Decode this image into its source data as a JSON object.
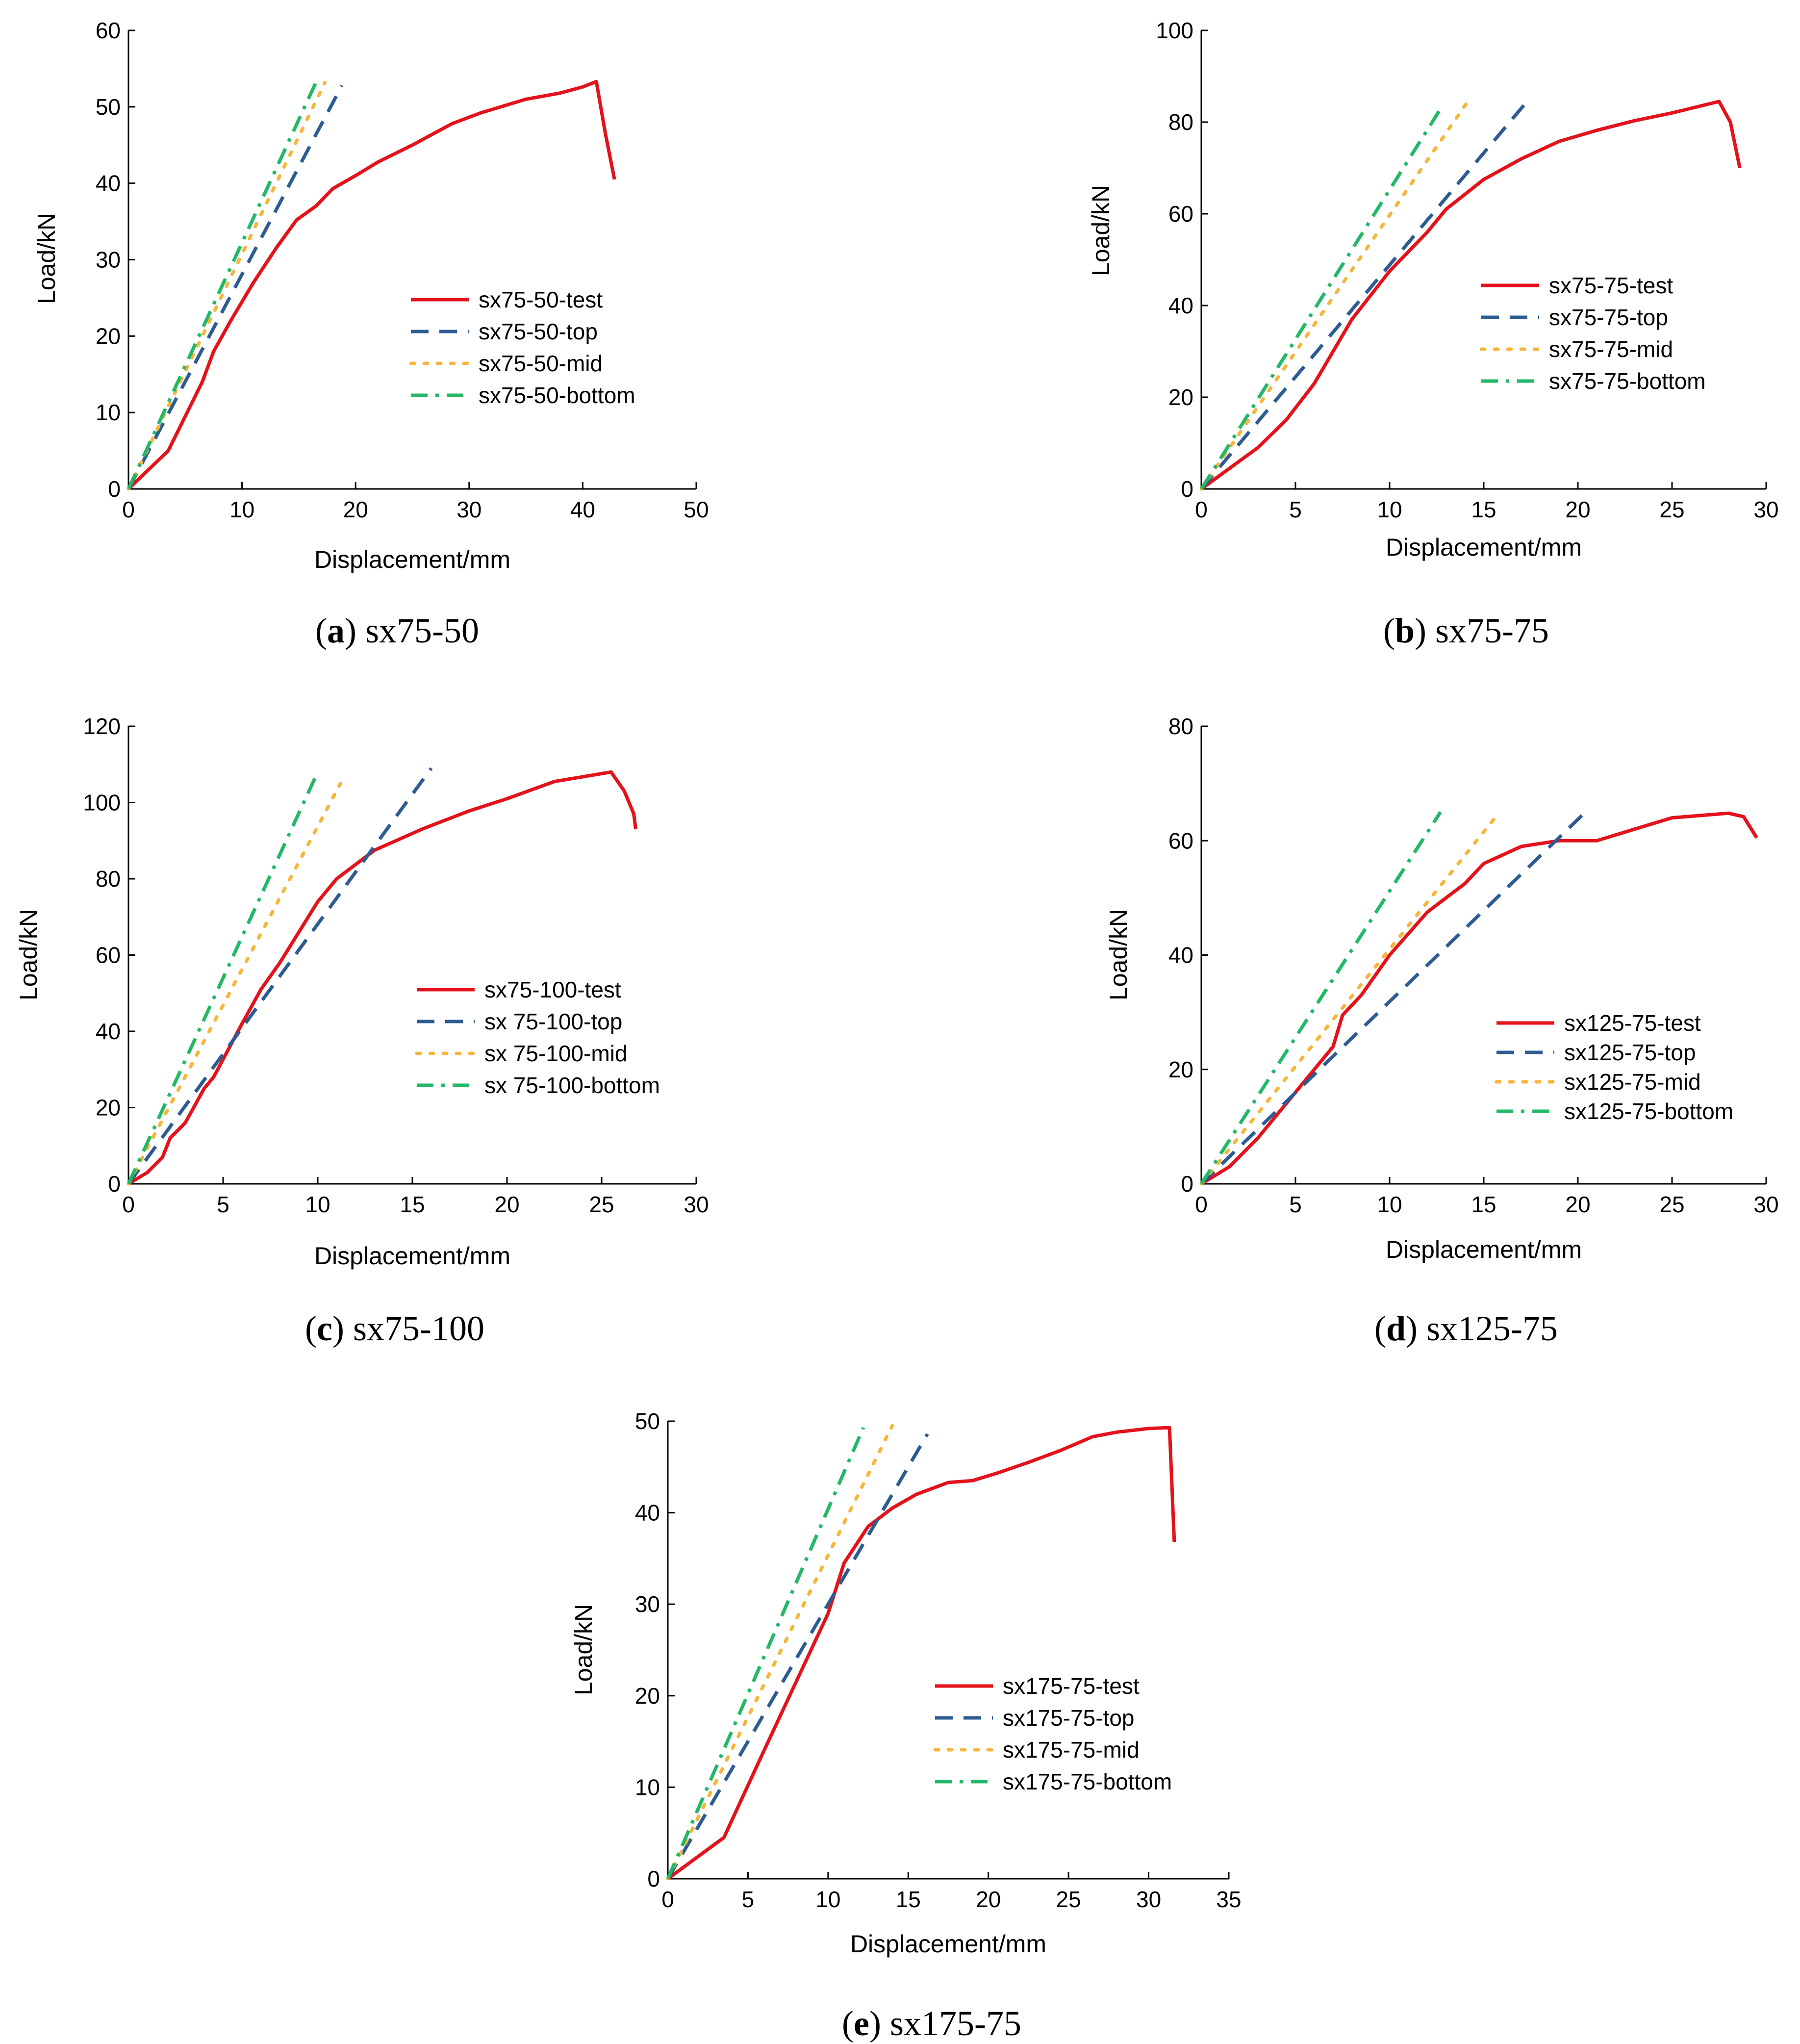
{
  "figure": {
    "background": "#ffffff"
  },
  "chart_data": [
    {
      "id": "a",
      "type": "line",
      "caption_label": "a",
      "caption_text": "sx75-50",
      "xlabel": "Displacement/mm",
      "ylabel": "Load/kN",
      "xlim": [
        0,
        50
      ],
      "ylim": [
        0,
        60
      ],
      "xticks": [
        0,
        10,
        20,
        30,
        40,
        50
      ],
      "yticks": [
        0,
        10,
        20,
        30,
        40,
        50,
        60
      ],
      "series": [
        {
          "name": "sx75-50-test",
          "style": "solid",
          "color": "#e3121b",
          "x": [
            0,
            3.5,
            6.5,
            7.5,
            9,
            11,
            13,
            14.8,
            16.5,
            18,
            20,
            22,
            25,
            28.5,
            31,
            35,
            38,
            40,
            41.2,
            42,
            42.8
          ],
          "y": [
            0,
            5,
            14,
            18,
            22,
            27,
            31.5,
            35.2,
            37,
            39.3,
            41,
            42.8,
            45,
            47.8,
            49.2,
            51,
            51.8,
            52.6,
            53.3,
            46.5,
            40.5
          ]
        },
        {
          "name": "sx75-50-top",
          "style": "dashed",
          "color": "#2d5c92",
          "x": [
            0,
            18.8
          ],
          "y": [
            0,
            52.8
          ]
        },
        {
          "name": "sx75-50-mid",
          "style": "dotted",
          "color": "#f6b63b",
          "x": [
            0,
            17.3
          ],
          "y": [
            0,
            53.2
          ]
        },
        {
          "name": "sx75-50-bottom",
          "style": "dashdot",
          "color": "#22b866",
          "x": [
            0,
            16.6
          ],
          "y": [
            0,
            53.5
          ]
        }
      ]
    },
    {
      "id": "b",
      "type": "line",
      "caption_label": "b",
      "caption_text": "sx75-75",
      "xlabel": "Displacement/mm",
      "ylabel": "Load/kN",
      "xlim": [
        0,
        30
      ],
      "ylim": [
        0,
        100
      ],
      "xticks": [
        0,
        5,
        10,
        15,
        20,
        25,
        30
      ],
      "yticks": [
        0,
        20,
        40,
        60,
        80,
        100
      ],
      "series": [
        {
          "name": "sx75-75-test",
          "style": "solid",
          "color": "#e3121b",
          "x": [
            0,
            1,
            3,
            4.5,
            6,
            8,
            10,
            12,
            13,
            15,
            17,
            19,
            21,
            23,
            25,
            27.5,
            28.1,
            28.6
          ],
          "y": [
            0,
            3,
            9,
            15,
            23,
            37,
            47.5,
            56,
            61,
            67.5,
            72,
            75.8,
            78.2,
            80.3,
            82,
            84.5,
            80,
            70
          ]
        },
        {
          "name": "sx75-75-top",
          "style": "dashed",
          "color": "#2d5c92",
          "x": [
            0,
            17.3
          ],
          "y": [
            0,
            84.5
          ]
        },
        {
          "name": "sx75-75-mid",
          "style": "dotted",
          "color": "#f6b63b",
          "x": [
            0,
            14.2
          ],
          "y": [
            0,
            84.8
          ]
        },
        {
          "name": "sx75-75-bottom",
          "style": "dashdot",
          "color": "#22b866",
          "x": [
            0,
            12.8
          ],
          "y": [
            0,
            83.5
          ]
        }
      ]
    },
    {
      "id": "c",
      "type": "line",
      "caption_label": "c",
      "caption_text": "sx75-100",
      "xlabel": "Displacement/mm",
      "ylabel": "Load/kN",
      "xlim": [
        0,
        30
      ],
      "ylim": [
        0,
        120
      ],
      "xticks": [
        0,
        5,
        10,
        15,
        20,
        25,
        30
      ],
      "yticks": [
        0,
        20,
        40,
        60,
        80,
        100,
        120
      ],
      "series": [
        {
          "name": "sx75-100-test",
          "style": "solid",
          "color": "#e3121b",
          "x": [
            0,
            1,
            1.8,
            2.2,
            3,
            4,
            4.5,
            6,
            7,
            8,
            10,
            11,
            13,
            15.5,
            18,
            20,
            22.5,
            25.5,
            26.2,
            26.7,
            26.8
          ],
          "y": [
            0,
            3,
            7,
            12,
            16,
            25,
            28,
            42,
            51,
            58,
            74,
            80,
            87.5,
            93,
            97.8,
            101,
            105.5,
            108,
            103,
            97,
            93
          ]
        },
        {
          "name": "sx 75-100-top",
          "style": "dashed",
          "color": "#2d5c92",
          "x": [
            0,
            16
          ],
          "y": [
            0,
            109
          ]
        },
        {
          "name": "sx 75-100-mid",
          "style": "dotted",
          "color": "#f6b63b",
          "x": [
            0,
            11.2
          ],
          "y": [
            0,
            105
          ]
        },
        {
          "name": "sx 75-100-bottom",
          "style": "dashdot",
          "color": "#22b866",
          "x": [
            0,
            10
          ],
          "y": [
            0,
            108
          ]
        }
      ]
    },
    {
      "id": "d",
      "type": "line",
      "caption_label": "d",
      "caption_text": "sx125-75",
      "xlabel": "Displacement/mm",
      "ylabel": "Load/kN",
      "xlim": [
        0,
        30
      ],
      "ylim": [
        0,
        80
      ],
      "xticks": [
        0,
        5,
        10,
        15,
        20,
        25,
        30
      ],
      "yticks": [
        0,
        20,
        40,
        60,
        80
      ],
      "series": [
        {
          "name": "sx125-75-test",
          "style": "solid",
          "color": "#e3121b",
          "x": [
            0,
            1.5,
            3,
            5,
            7,
            7.5,
            8.5,
            10,
            12,
            14,
            15,
            17,
            19,
            21,
            23,
            25,
            28,
            28.8,
            29.5
          ],
          "y": [
            0,
            3,
            8,
            16,
            24,
            29.5,
            33,
            40,
            47.5,
            52.5,
            56,
            59,
            60,
            60,
            62,
            64,
            64.8,
            64.2,
            60.5
          ]
        },
        {
          "name": "sx125-75-top",
          "style": "dashed",
          "color": "#2d5c92",
          "x": [
            0,
            20.4
          ],
          "y": [
            0,
            65
          ]
        },
        {
          "name": "sx125-75-mid",
          "style": "dotted",
          "color": "#f6b63b",
          "x": [
            0,
            15.6
          ],
          "y": [
            0,
            64
          ]
        },
        {
          "name": "sx125-75-bottom",
          "style": "dashdot",
          "color": "#22b866",
          "x": [
            0,
            12.7
          ],
          "y": [
            0,
            65
          ]
        }
      ]
    },
    {
      "id": "e",
      "type": "line",
      "caption_label": "e",
      "caption_text": "sx175-75",
      "xlabel": "Displacement/mm",
      "ylabel": "Load/kN",
      "xlim": [
        0,
        35
      ],
      "ylim": [
        0,
        50
      ],
      "xticks": [
        0,
        5,
        10,
        15,
        20,
        25,
        30,
        35
      ],
      "yticks": [
        0,
        10,
        20,
        30,
        40,
        50
      ],
      "series": [
        {
          "name": "sx175-75-test",
          "style": "solid",
          "color": "#e3121b",
          "x": [
            0,
            3.5,
            6,
            8,
            10,
            11,
            12.5,
            14,
            15.5,
            17.5,
            19,
            20.5,
            22.5,
            24.5,
            26.5,
            28,
            30,
            31.3,
            31.6
          ],
          "y": [
            0,
            4.5,
            14,
            21.5,
            29,
            34.5,
            38.5,
            40.5,
            42,
            43.3,
            43.5,
            44.3,
            45.5,
            46.8,
            48.3,
            48.8,
            49.2,
            49.3,
            36.8
          ]
        },
        {
          "name": "sx175-75-top",
          "style": "dashed",
          "color": "#2d5c92",
          "x": [
            0,
            16.2
          ],
          "y": [
            0,
            48.6
          ]
        },
        {
          "name": "sx175-75-mid",
          "style": "dotted",
          "color": "#f6b63b",
          "x": [
            0,
            14
          ],
          "y": [
            0,
            49.5
          ]
        },
        {
          "name": "sx175-75-bottom",
          "style": "dashdot",
          "color": "#22b866",
          "x": [
            0,
            12.2
          ],
          "y": [
            0,
            49.3
          ]
        }
      ]
    }
  ]
}
